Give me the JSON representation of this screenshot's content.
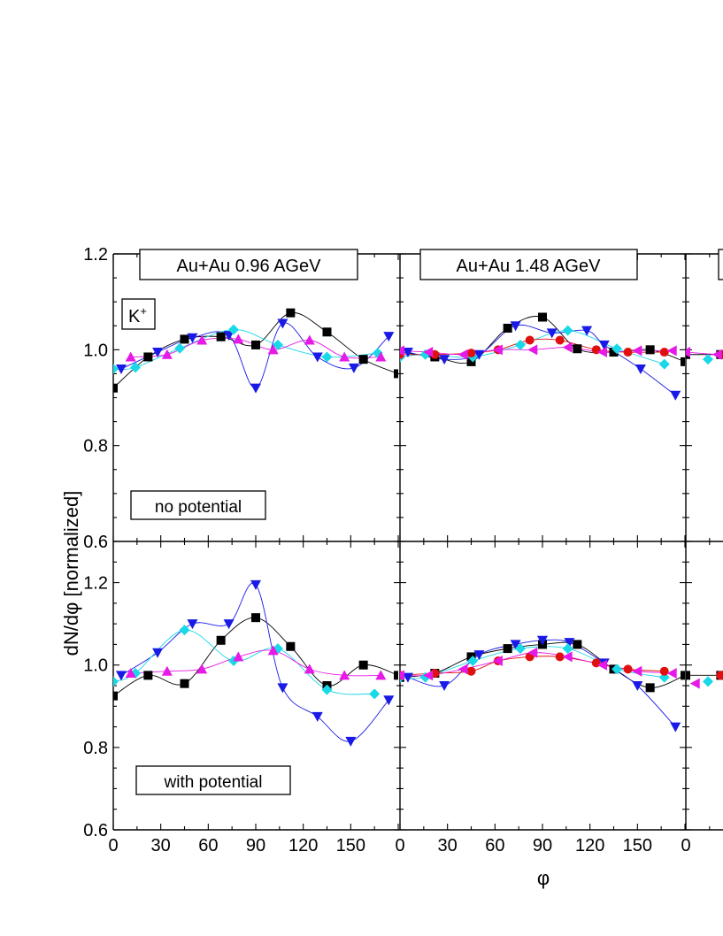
{
  "figure": {
    "ylabel": "dN/dφ [normalized]",
    "xlabel": "φ",
    "particle_label": "K",
    "particle_charge": "+"
  },
  "colors": {
    "black": "#000000",
    "blue": "#1a1ae6",
    "cyan": "#19d8e8",
    "magenta": "#e619e6",
    "red": "#e01010"
  },
  "chart_data": [
    {
      "type": "scatter",
      "panel": "top-left",
      "title": "Au+Au 0.96 AGeV",
      "annotation": "no potential",
      "xlabel": "φ",
      "ylabel": "dN/dφ [normalized]",
      "xlim": [
        0,
        180
      ],
      "ylim": [
        0.6,
        1.2
      ],
      "xticks": [
        "0",
        "30",
        "60",
        "90",
        "120",
        "150"
      ],
      "yticks": [
        "0.6",
        "0.8",
        "1.0",
        "1.2"
      ],
      "series": [
        {
          "marker": "square",
          "color": "black",
          "x": [
            0,
            22,
            45,
            68,
            90,
            112,
            135,
            158,
            180
          ],
          "y": [
            0.92,
            0.985,
            1.022,
            1.027,
            1.01,
            1.077,
            1.037,
            0.98,
            0.95
          ]
        },
        {
          "marker": "triangle-down",
          "color": "blue",
          "x": [
            5,
            28,
            50,
            73,
            90,
            107,
            129,
            152,
            174
          ],
          "y": [
            0.96,
            0.995,
            1.025,
            1.03,
            0.92,
            1.055,
            0.985,
            0.962,
            1.028
          ]
        },
        {
          "marker": "diamond",
          "color": "cyan",
          "x": [
            0,
            14,
            42,
            76,
            104,
            135,
            167
          ],
          "y": [
            0.96,
            0.963,
            1.003,
            1.042,
            1.01,
            0.985,
            0.993
          ]
        },
        {
          "marker": "triangle-up",
          "color": "magenta",
          "x": [
            11,
            34,
            56,
            79,
            101,
            124,
            146,
            169
          ],
          "y": [
            0.985,
            0.99,
            1.02,
            1.022,
            1.0,
            1.02,
            0.985,
            0.985
          ]
        }
      ]
    },
    {
      "type": "scatter",
      "panel": "top-middle",
      "title": "Au+Au 1.48 AGeV",
      "xlabel": "φ",
      "xlim": [
        0,
        180
      ],
      "ylim": [
        0.6,
        1.2
      ],
      "xticks": [
        "0",
        "30",
        "60",
        "90",
        "120",
        "150"
      ],
      "series": [
        {
          "marker": "square",
          "color": "black",
          "x": [
            0,
            22,
            45,
            68,
            90,
            112,
            135,
            158,
            180
          ],
          "y": [
            0.995,
            0.985,
            0.975,
            1.045,
            1.068,
            1.002,
            0.995,
            1.0,
            0.975
          ]
        },
        {
          "marker": "triangle-down",
          "color": "blue",
          "x": [
            5,
            28,
            50,
            73,
            96,
            118,
            129,
            152,
            174
          ],
          "y": [
            0.995,
            0.98,
            0.99,
            1.05,
            1.035,
            1.04,
            1.01,
            0.96,
            0.905
          ]
        },
        {
          "marker": "diamond",
          "color": "cyan",
          "x": [
            0,
            16,
            46,
            76,
            106,
            137,
            167
          ],
          "y": [
            0.985,
            0.99,
            0.985,
            1.01,
            1.04,
            1.002,
            0.97
          ]
        },
        {
          "marker": "circle",
          "color": "red",
          "x": [
            0,
            22,
            45,
            62,
            82,
            101,
            124,
            144,
            167
          ],
          "y": [
            0.99,
            0.99,
            0.993,
            1.0,
            1.02,
            1.02,
            1.0,
            0.995,
            0.995
          ]
        },
        {
          "marker": "triangle-left",
          "color": "magenta",
          "x": [
            0,
            18,
            40,
            62,
            84,
            106,
            128,
            150,
            172
          ],
          "y": [
            0.998,
            0.995,
            0.99,
            1.0,
            1.0,
            1.005,
            0.995,
            0.998,
            0.998
          ]
        }
      ]
    },
    {
      "type": "scatter",
      "panel": "bottom-left",
      "annotation": "with potential",
      "xlabel": "φ",
      "ylabel": "dN/dφ [normalized]",
      "xlim": [
        0,
        180
      ],
      "ylim": [
        0.6,
        1.3
      ],
      "xticks": [
        "0",
        "30",
        "60",
        "90",
        "120",
        "150"
      ],
      "yticks": [
        "0.6",
        "0.8",
        "1.0",
        "1.2"
      ],
      "series": [
        {
          "marker": "square",
          "color": "black",
          "x": [
            0,
            22,
            45,
            68,
            90,
            112,
            135,
            158,
            180
          ],
          "y": [
            0.925,
            0.975,
            0.955,
            1.06,
            1.115,
            1.045,
            0.95,
            1.0,
            0.975
          ]
        },
        {
          "marker": "triangle-down",
          "color": "blue",
          "x": [
            5,
            28,
            50,
            73,
            90,
            107,
            129,
            150,
            174
          ],
          "y": [
            0.975,
            1.03,
            1.1,
            1.1,
            1.195,
            0.945,
            0.875,
            0.815,
            0.915
          ]
        },
        {
          "marker": "diamond",
          "color": "cyan",
          "x": [
            0,
            14,
            45,
            76,
            104,
            135,
            165
          ],
          "y": [
            0.96,
            0.98,
            1.085,
            1.01,
            1.04,
            0.94,
            0.93
          ]
        },
        {
          "marker": "triangle-up",
          "color": "magenta",
          "x": [
            11,
            34,
            56,
            79,
            101,
            124,
            146,
            169
          ],
          "y": [
            0.98,
            0.985,
            0.99,
            1.02,
            1.035,
            0.99,
            0.975,
            0.975
          ]
        }
      ]
    },
    {
      "type": "scatter",
      "panel": "bottom-middle",
      "xlabel": "φ",
      "xlim": [
        0,
        180
      ],
      "ylim": [
        0.6,
        1.3
      ],
      "xticks": [
        "0",
        "30",
        "60",
        "90",
        "120",
        "150"
      ],
      "series": [
        {
          "marker": "square",
          "color": "black",
          "x": [
            0,
            22,
            45,
            68,
            90,
            112,
            135,
            158,
            180
          ],
          "y": [
            0.97,
            0.98,
            1.02,
            1.04,
            1.05,
            1.05,
            0.99,
            0.945,
            0.975
          ]
        },
        {
          "marker": "triangle-down",
          "color": "blue",
          "x": [
            5,
            28,
            50,
            73,
            90,
            107,
            129,
            150,
            174
          ],
          "y": [
            0.97,
            0.95,
            1.025,
            1.05,
            1.06,
            1.055,
            1.005,
            0.95,
            0.85
          ]
        },
        {
          "marker": "diamond",
          "color": "cyan",
          "x": [
            0,
            16,
            46,
            76,
            106,
            137,
            167
          ],
          "y": [
            0.97,
            0.97,
            1.01,
            1.04,
            1.04,
            0.99,
            0.97
          ]
        },
        {
          "marker": "circle",
          "color": "red",
          "x": [
            0,
            22,
            45,
            62,
            82,
            101,
            124,
            144,
            167
          ],
          "y": [
            0.975,
            0.98,
            0.985,
            1.01,
            1.02,
            1.02,
            1.005,
            0.99,
            0.985
          ]
        },
        {
          "marker": "triangle-left",
          "color": "magenta",
          "x": [
            0,
            18,
            40,
            62,
            84,
            106,
            128,
            150,
            172
          ],
          "y": [
            0.975,
            0.975,
            0.99,
            1.01,
            1.03,
            1.02,
            1.0,
            0.985,
            0.98
          ]
        }
      ]
    },
    {
      "type": "scatter",
      "panel": "top-right-partial",
      "xlim": [
        0,
        180
      ],
      "ylim": [
        0.6,
        1.2
      ],
      "series": [
        {
          "marker": "square",
          "color": "black",
          "x": [
            0,
            22
          ],
          "y": [
            0.99,
            0.99
          ]
        },
        {
          "marker": "diamond",
          "color": "cyan",
          "x": [
            14
          ],
          "y": [
            0.98
          ]
        },
        {
          "marker": "circle",
          "color": "red",
          "x": [
            22
          ],
          "y": [
            0.99
          ]
        },
        {
          "marker": "triangle-left",
          "color": "magenta",
          "x": [
            0,
            20
          ],
          "y": [
            0.995,
            0.99
          ]
        }
      ]
    },
    {
      "type": "scatter",
      "panel": "bottom-right-partial",
      "xlim": [
        0,
        180
      ],
      "ylim": [
        0.6,
        1.3
      ],
      "xticks": [
        "0"
      ],
      "series": [
        {
          "marker": "square",
          "color": "black",
          "x": [
            0,
            22
          ],
          "y": [
            0.975,
            0.975
          ]
        },
        {
          "marker": "diamond",
          "color": "cyan",
          "x": [
            14
          ],
          "y": [
            0.96
          ]
        },
        {
          "marker": "circle",
          "color": "red",
          "x": [
            22
          ],
          "y": [
            0.975
          ]
        },
        {
          "marker": "triangle-left",
          "color": "magenta",
          "x": [
            6
          ],
          "y": [
            0.955
          ]
        }
      ]
    }
  ]
}
